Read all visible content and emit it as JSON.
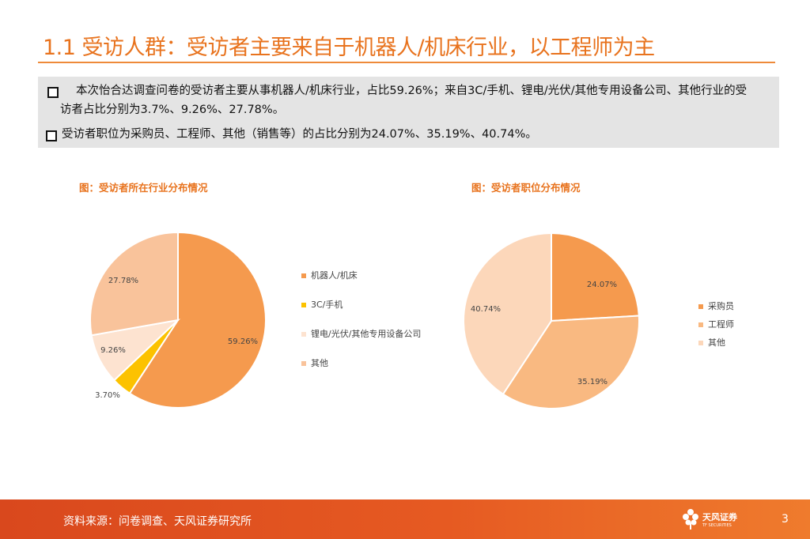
{
  "header": {
    "title": "1.1 受访人群：受访者主要来自于机器人/机床行业，以工程师为主"
  },
  "summary": {
    "bullet1": "本次怡合达调查问卷的受访者主要从事机器人/机床行业，占比59.26%；来自3C/手机、锂电/光伏/其他专用设备公司、其他行业的受访者占比分别为3.7%、9.26%、27.78%。",
    "bullet2": "受访者职位为采购员、工程师、其他（销售等）的占比分别为24.07%、35.19%、40.74%。"
  },
  "chart_data": [
    {
      "type": "pie",
      "title": "图：受访者所在行业分布情况",
      "categories": [
        "机器人/机床",
        "3C/手机",
        "锂电/光伏/其他专用设备公司",
        "其他"
      ],
      "values": [
        59.26,
        3.7,
        9.26,
        27.78
      ],
      "data_labels": [
        "59.26%",
        "3.70%",
        "9.26%",
        "27.78%"
      ],
      "colors": [
        "#f59a4e",
        "#fcc200",
        "#fde3d0",
        "#f9c39b"
      ],
      "legend_position": "right"
    },
    {
      "type": "pie",
      "title": "图：受访者职位分布情况",
      "categories": [
        "采购员",
        "工程师",
        "其他"
      ],
      "values": [
        24.07,
        35.19,
        40.74
      ],
      "data_labels": [
        "24.07%",
        "35.19%",
        "40.74%"
      ],
      "colors": [
        "#f59a4e",
        "#f9b981",
        "#fcd7ba"
      ],
      "legend_position": "right"
    }
  ],
  "footer": {
    "source": "资料来源：问卷调查、天风证券研究所",
    "logo_text": "天风证券",
    "logo_sub": "TF SECURITIES",
    "page_number": "3"
  }
}
